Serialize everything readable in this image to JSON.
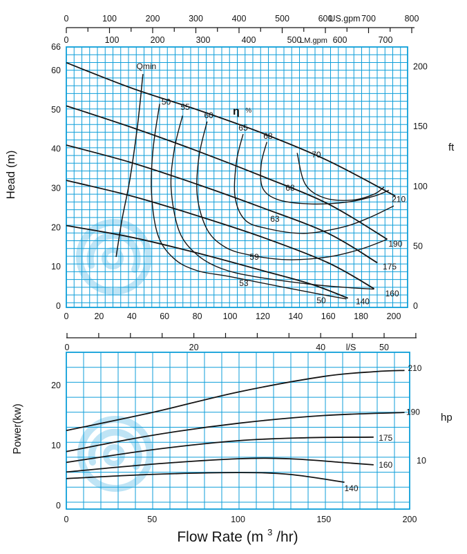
{
  "colors": {
    "grid": "#0d9ed9",
    "curve": "#141414",
    "watermark": "#bfe4f5",
    "background": "#ffffff"
  },
  "chart_data": [
    {
      "type": "line",
      "name": "head-flow-chart",
      "x_axis": {
        "ticks": [
          0,
          20,
          40,
          60,
          80,
          100,
          120,
          140,
          160,
          180,
          200
        ],
        "range": [
          0,
          208
        ],
        "unit": "m3/hr"
      },
      "y_left": {
        "label": "Head (m)",
        "ticks": [
          0,
          10,
          20,
          30,
          40,
          50,
          60,
          66
        ],
        "range": [
          0,
          66
        ]
      },
      "y_right": {
        "unit": "ft",
        "ticks": [
          0,
          50,
          100,
          150,
          200
        ]
      },
      "us_gpm_axis": {
        "unit": "US.gpm",
        "ticks": [
          0,
          100,
          200,
          300,
          400,
          500,
          600,
          700,
          800
        ],
        "minor_step": 50
      },
      "lm_gpm_axis": {
        "unit": "LM.gpm",
        "ticks": [
          0,
          100,
          200,
          300,
          400,
          500,
          600,
          700
        ]
      },
      "ls_axis": {
        "unit": "l/S",
        "ticks": [
          0,
          20,
          40,
          50
        ],
        "tick_step": 5,
        "max": 55
      },
      "series": [
        {
          "name": "210",
          "points": [
            [
              0,
              62
            ],
            [
              40,
              55.5
            ],
            [
              80,
              50
            ],
            [
              120,
              44
            ],
            [
              160,
              37
            ],
            [
              201,
              28
            ]
          ],
          "label_at": [
            203,
            26.5
          ]
        },
        {
          "name": "190",
          "points": [
            [
              0,
              51
            ],
            [
              40,
              45.5
            ],
            [
              80,
              39.5
            ],
            [
              120,
              33
            ],
            [
              160,
              26
            ],
            [
              196,
              17
            ]
          ],
          "label_at": [
            201,
            15.1
          ]
        },
        {
          "name": "175",
          "points": [
            [
              0,
              41
            ],
            [
              40,
              36.5
            ],
            [
              80,
              31
            ],
            [
              120,
              25
            ],
            [
              160,
              18.5
            ],
            [
              190,
              11
            ]
          ],
          "label_at": [
            197.5,
            9.3
          ]
        },
        {
          "name": "160",
          "points": [
            [
              0,
              32
            ],
            [
              40,
              28
            ],
            [
              80,
              23
            ],
            [
              120,
              17.5
            ],
            [
              160,
              11
            ],
            [
              188,
              4.4
            ]
          ],
          "label_at": [
            199,
            2.5
          ]
        },
        {
          "name": "140",
          "points": [
            [
              0,
              20.5
            ],
            [
              40,
              17.5
            ],
            [
              80,
              13.5
            ],
            [
              120,
              9
            ],
            [
              150,
              5.5
            ],
            [
              172,
              2
            ]
          ],
          "label_at": [
            181,
            0.4
          ]
        }
      ],
      "efficiency": {
        "symbol": "η",
        "unit": "%"
      },
      "efficiency_contours": [
        {
          "id": "50",
          "points": [
            [
              57,
              51.5
            ],
            [
              53,
              40
            ],
            [
              52,
              29
            ],
            [
              56,
              18
            ],
            [
              66,
              12
            ],
            [
              80,
              9
            ],
            [
              100,
              7.5
            ],
            [
              130,
              5
            ],
            [
              155,
              3
            ],
            [
              171,
              1.8
            ]
          ],
          "labels": [
            {
              "text": "50",
              "at": [
                61,
                51.3
              ]
            },
            {
              "text": "50",
              "at": [
                155.7,
                0.7
              ]
            }
          ]
        },
        {
          "id": "55-53",
          "points": [
            [
              71,
              48.5
            ],
            [
              66,
              40
            ],
            [
              64,
              30
            ],
            [
              69,
              19
            ],
            [
              80,
              13
            ],
            [
              95,
              9.5
            ],
            [
              115,
              7.5
            ],
            [
              150,
              5.5
            ],
            [
              175,
              4.6
            ],
            [
              188,
              4.3
            ]
          ],
          "labels": [
            {
              "text": "55",
              "at": [
                72.6,
                50
              ]
            },
            {
              "text": "53",
              "at": [
                108.4,
                5.1
              ]
            }
          ]
        },
        {
          "id": "60-59",
          "points": [
            [
              86,
              47
            ],
            [
              81,
              38
            ],
            [
              80,
              28
            ],
            [
              86,
              19.5
            ],
            [
              97,
              15
            ],
            [
              112,
              13
            ],
            [
              135,
              11.8
            ],
            [
              160,
              12.5
            ],
            [
              180,
              14.5
            ],
            [
              196,
              17
            ]
          ],
          "labels": [
            {
              "text": "60",
              "at": [
                87,
                47.9
              ]
            },
            {
              "text": "59",
              "at": [
                114.8,
                11.8
              ]
            }
          ]
        },
        {
          "id": "65-63",
          "points": [
            [
              108,
              43.8
            ],
            [
              104,
              37
            ],
            [
              103,
              28
            ],
            [
              109,
              22
            ],
            [
              122,
              19.8
            ],
            [
              145,
              18.5
            ],
            [
              168,
              20
            ],
            [
              185,
              22.5
            ],
            [
              200,
              25.5
            ]
          ],
          "labels": [
            {
              "text": "65",
              "at": [
                108,
                44.7
              ]
            },
            {
              "text": "63",
              "at": [
                127.4,
                21.5
              ]
            }
          ]
        },
        {
          "id": "68",
          "points": [
            [
              122.5,
              41.8
            ],
            [
              119,
              36
            ],
            [
              120,
              30
            ],
            [
              130,
              27
            ],
            [
              150,
              26
            ],
            [
              172,
              26.5
            ],
            [
              188,
              28
            ],
            [
              197,
              29.5
            ]
          ],
          "labels": [
            {
              "text": "68",
              "at": [
                123.2,
                42.6
              ]
            },
            {
              "text": "68",
              "at": [
                136.7,
                29.4
              ]
            }
          ]
        },
        {
          "id": "70",
          "points": [
            [
              141,
              39
            ],
            [
              146,
              31
            ],
            [
              158,
              27.5
            ],
            [
              175,
              27
            ],
            [
              188,
              28.5
            ],
            [
              194,
              30.3
            ]
          ],
          "labels": [
            {
              "text": "70",
              "at": [
                152.7,
                37.8
              ]
            }
          ]
        }
      ],
      "qmin": {
        "label": "Qmin",
        "points": [
          [
            30.4,
            12.5
          ],
          [
            34,
            22
          ],
          [
            38.8,
            32.2
          ],
          [
            43.5,
            46
          ],
          [
            46.8,
            59.1
          ]
        ],
        "label_at": [
          48.9,
          60.4
        ]
      }
    },
    {
      "type": "line",
      "name": "power-flow-chart",
      "x_axis": {
        "title_prefix": "Flow Rate (m",
        "title_sup": "3",
        "title_suffix": "/hr)",
        "ticks": [
          0,
          50,
          100,
          150,
          200
        ],
        "range": [
          0,
          200
        ]
      },
      "y_left": {
        "label": "Power(kw)",
        "ticks": [
          0,
          10,
          20
        ],
        "range": [
          0,
          26
        ]
      },
      "y_right": {
        "unit": "hp",
        "ticks": [
          10
        ]
      },
      "series": [
        {
          "name": "210",
          "points": [
            [
              0,
              12.5
            ],
            [
              50,
              15.5
            ],
            [
              100,
              18.9
            ],
            [
              150,
              21.5
            ],
            [
              180,
              22.3
            ],
            [
              197,
              22.5
            ]
          ],
          "label_at": [
            203,
            22.4
          ]
        },
        {
          "name": "190",
          "points": [
            [
              0,
              9
            ],
            [
              50,
              11.7
            ],
            [
              100,
              13.7
            ],
            [
              150,
              15
            ],
            [
              197,
              15.5
            ]
          ],
          "label_at": [
            202,
            15.1
          ]
        },
        {
          "name": "175",
          "points": [
            [
              0,
              7.2
            ],
            [
              50,
              9.3
            ],
            [
              100,
              10.8
            ],
            [
              140,
              11.3
            ],
            [
              179,
              11.4
            ]
          ],
          "label_at": [
            186,
            10.8
          ]
        },
        {
          "name": "160",
          "points": [
            [
              0,
              5.6
            ],
            [
              50,
              6.9
            ],
            [
              100,
              7.8
            ],
            [
              130,
              7.8
            ],
            [
              160,
              7.2
            ],
            [
              179,
              6.8
            ]
          ],
          "label_at": [
            186,
            6.3
          ]
        },
        {
          "name": "140",
          "points": [
            [
              0,
              4.5
            ],
            [
              50,
              5.2
            ],
            [
              100,
              5.5
            ],
            [
              130,
              5.2
            ],
            [
              162,
              3.9
            ]
          ],
          "label_at": [
            166,
            2.4
          ]
        }
      ]
    }
  ]
}
